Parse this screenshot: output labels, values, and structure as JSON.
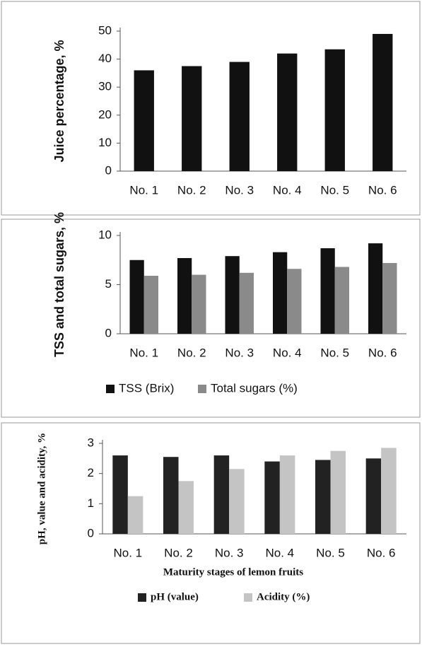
{
  "chart_data": [
    {
      "type": "bar",
      "y_label": "Juice percentage, %",
      "categories": [
        "No. 1",
        "No. 2",
        "No. 3",
        "No. 4",
        "No. 5",
        "No. 6"
      ],
      "values": [
        36,
        37.5,
        39,
        42,
        43.5,
        49
      ],
      "color": "#111111",
      "ylim": [
        0,
        50
      ],
      "yticks": [
        0,
        10,
        20,
        30,
        40,
        50
      ]
    },
    {
      "type": "bar",
      "y_label": "TSS and total sugars, %",
      "categories": [
        "No. 1",
        "No. 2",
        "No. 3",
        "No. 4",
        "No. 5",
        "No. 6"
      ],
      "series": [
        {
          "name": "TSS (Brix)",
          "color": "#111111",
          "values": [
            7.5,
            7.7,
            7.9,
            8.3,
            8.7,
            9.2
          ]
        },
        {
          "name": "Total sugars (%)",
          "color": "#8a8a8a",
          "values": [
            5.9,
            6.0,
            6.2,
            6.6,
            6.8,
            7.2
          ]
        }
      ],
      "ylim": [
        0,
        10
      ],
      "yticks": [
        0,
        5,
        10
      ],
      "legend": "bottom"
    },
    {
      "type": "bar",
      "y_label": "pH, value and acidity, %",
      "x_label": "Maturity stages of lemon fruits",
      "categories": [
        "No. 1",
        "No. 2",
        "No. 3",
        "No. 4",
        "No. 5",
        "No. 6"
      ],
      "series": [
        {
          "name": "pH (value)",
          "color": "#222222",
          "values": [
            2.6,
            2.55,
            2.6,
            2.4,
            2.45,
            2.5
          ]
        },
        {
          "name": "Acidity (%)",
          "color": "#c4c4c4",
          "values": [
            1.25,
            1.75,
            2.15,
            2.6,
            2.75,
            2.85
          ]
        }
      ],
      "ylim": [
        0,
        3
      ],
      "yticks": [
        0,
        1,
        2,
        3
      ],
      "legend": "bottom"
    }
  ]
}
